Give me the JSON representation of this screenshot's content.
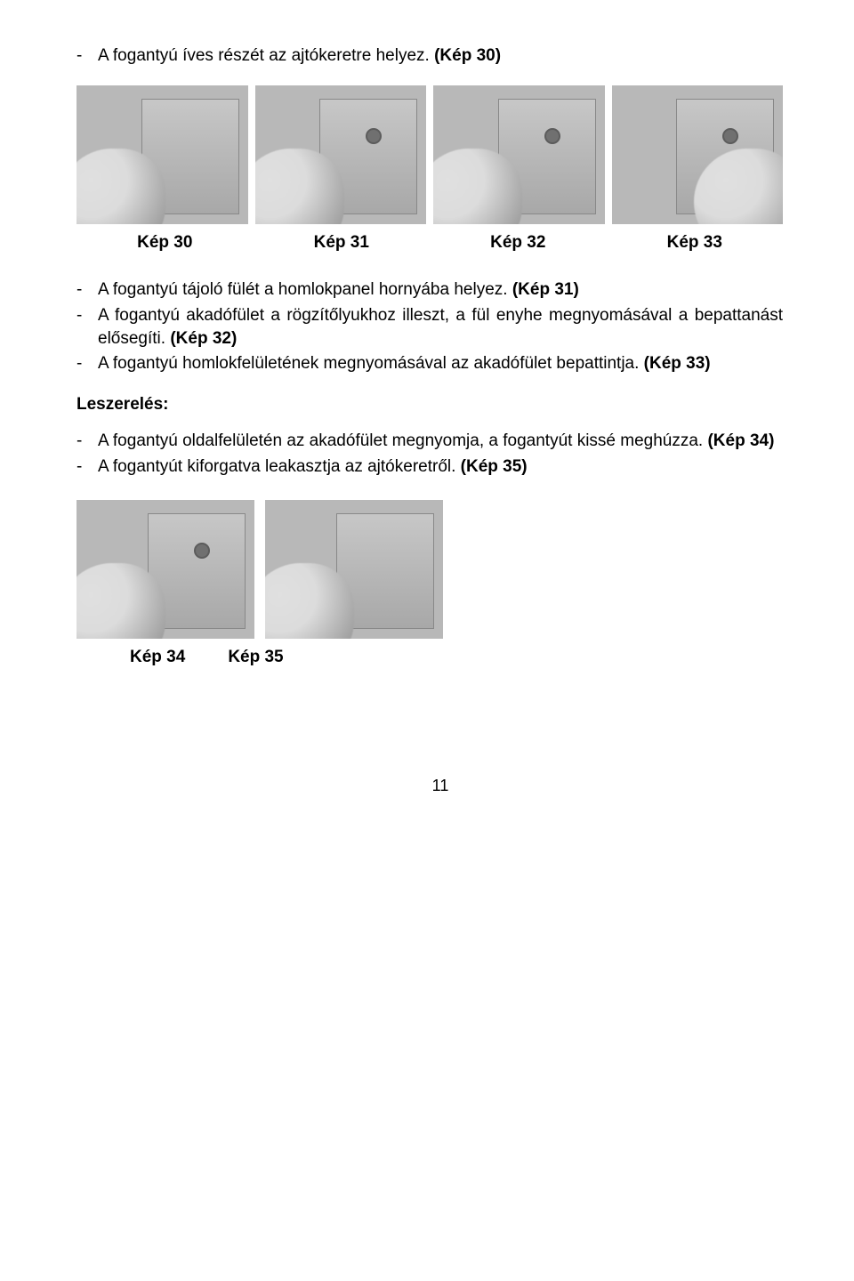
{
  "top": {
    "item1": "A fogantyú íves részét az ajtókeretre helyez. ",
    "item1_ref": "(Kép 30)"
  },
  "captions": {
    "c1": "Kép 30",
    "c2": "Kép 31",
    "c3": "Kép 32",
    "c4": "Kép 33"
  },
  "mid": {
    "i1": "A fogantyú tájoló fülét a homlokpanel hornyába helyez. ",
    "i1_ref": "(Kép 31)",
    "i2": "A fogantyú akadófület a rögzítőlyukhoz illeszt, a fül enyhe megnyomásával a bepattanást elősegíti. ",
    "i2_ref": "(Kép 32)",
    "i3a": "A fogantyú homlokfelületének megnyomásával az akadófület bepattintja. ",
    "i3_ref": "(Kép 33)"
  },
  "section_label": "Leszerelés:",
  "bot": {
    "i1a": "A fogantyú oldalfelületén az akadófület megnyomja, a fogantyút kissé meghúzza. ",
    "i1_ref": "(Kép 34)",
    "i2": "A fogantyút kiforgatva leakasztja az ajtókeretről. ",
    "i2_ref": "(Kép 35)"
  },
  "captions2": {
    "c1": "Kép 34",
    "c2": "Kép 35"
  },
  "page_number": "11"
}
